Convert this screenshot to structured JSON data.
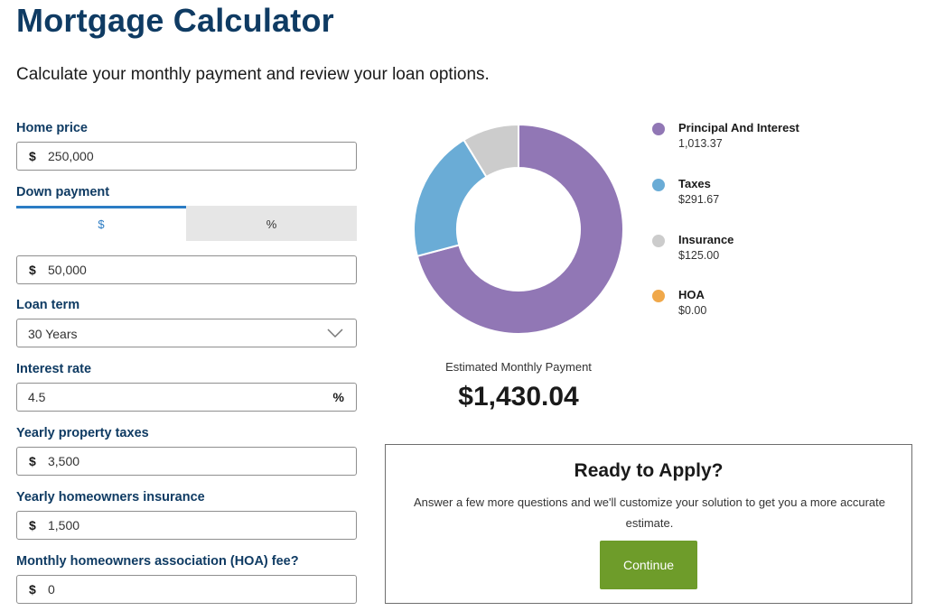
{
  "header": {
    "title": "Mortgage Calculator",
    "subtitle": "Calculate your monthly payment and review your loan options."
  },
  "form": {
    "home_price": {
      "label": "Home price",
      "currency": "$",
      "value": "250,000"
    },
    "down_payment": {
      "label": "Down payment",
      "tabs": [
        "$",
        "%"
      ],
      "active_tab": "$",
      "currency": "$",
      "value": "50,000"
    },
    "loan_term": {
      "label": "Loan term",
      "value": "30 Years"
    },
    "interest_rate": {
      "label": "Interest rate",
      "value": "4.5",
      "unit": "%"
    },
    "property_taxes": {
      "label": "Yearly property taxes",
      "currency": "$",
      "value": "3,500"
    },
    "homeowners_insurance": {
      "label": "Yearly homeowners insurance",
      "currency": "$",
      "value": "1,500"
    },
    "hoa_fee": {
      "label": "Monthly homeowners association (HOA) fee?",
      "currency": "$",
      "value": "0"
    }
  },
  "chart_data": {
    "type": "pie",
    "donut": true,
    "categories": [
      "Principal And Interest",
      "Taxes",
      "Insurance",
      "HOA"
    ],
    "values": [
      1013.37,
      291.67,
      125.0,
      0.0
    ],
    "colors": [
      "#9177b5",
      "#6aacd6",
      "#cccccc",
      "#f0a84a"
    ]
  },
  "legend": {
    "items": [
      {
        "name": "Principal And Interest",
        "value": "1,013.37",
        "color": "#9177b5"
      },
      {
        "name": "Taxes",
        "value": "$291.67",
        "color": "#6aacd6"
      },
      {
        "name": "Insurance",
        "value": "$125.00",
        "color": "#cccccc"
      },
      {
        "name": "HOA",
        "value": "$0.00",
        "color": "#f0a84a"
      }
    ]
  },
  "summary": {
    "label": "Estimated Monthly Payment",
    "value": "$1,430.04"
  },
  "apply": {
    "title": "Ready to Apply?",
    "text": "Answer a few more questions and we'll customize your solution to get you a more accurate estimate.",
    "button_label": "Continue"
  },
  "colors": {
    "heading": "#0f3b63",
    "accent_tab": "#2b7cc4",
    "button": "#6e9c2a"
  }
}
